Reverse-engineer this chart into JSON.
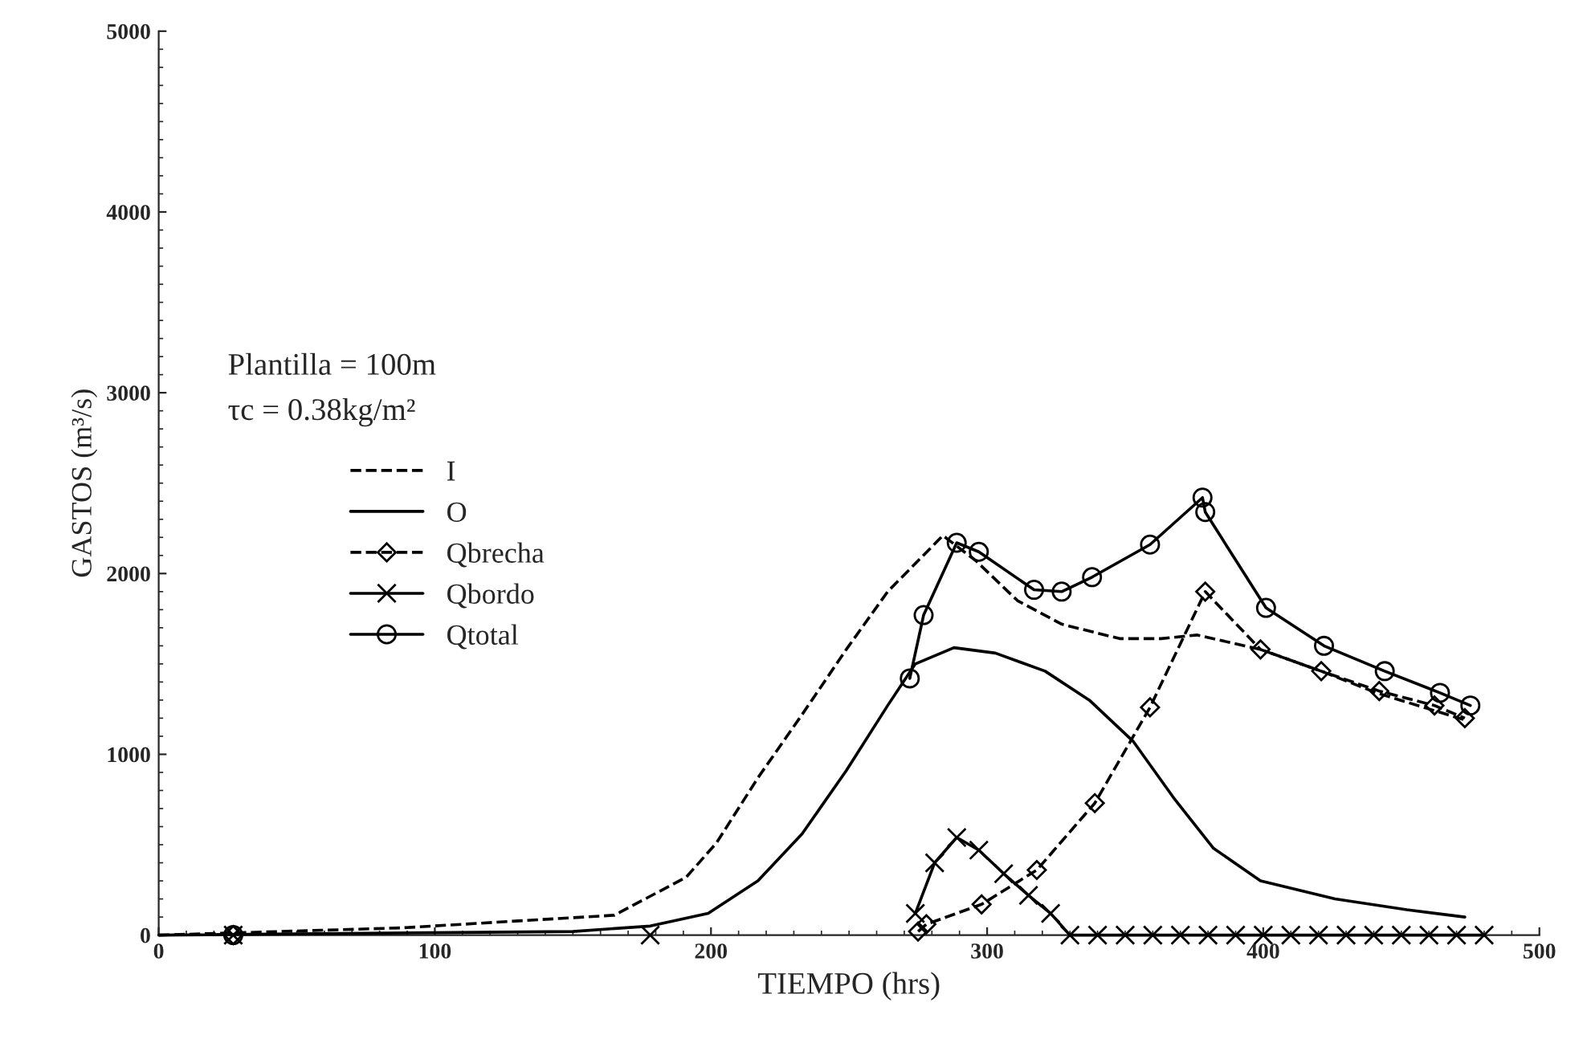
{
  "chart_data": {
    "type": "line",
    "xlabel": "TIEMPO (hrs)",
    "ylabel": "GASTOS (m³/s)",
    "annotations": [
      "Plantilla = 100m",
      "τc = 0.38kg/m²"
    ],
    "xlim": [
      0,
      500
    ],
    "ylim": [
      0,
      5000
    ],
    "xticks": [
      0,
      100,
      200,
      300,
      400,
      500
    ],
    "yticks": [
      0,
      1000,
      2000,
      3000,
      4000,
      5000
    ],
    "grid": false,
    "legend": "left",
    "series": [
      {
        "name": "I",
        "color": "#000000",
        "line_style": "dashed",
        "marker": "none",
        "x": [
          0,
          88,
          165,
          191,
          202,
          217,
          233,
          249,
          264,
          284,
          296,
          311,
          327,
          348,
          363,
          376,
          399,
          421,
          441,
          473
        ],
        "values": [
          0,
          40,
          110,
          320,
          510,
          870,
          1220,
          1580,
          1900,
          2210,
          2070,
          1850,
          1720,
          1640,
          1640,
          1660,
          1580,
          1460,
          1340,
          1190
        ]
      },
      {
        "name": "O",
        "color": "#000000",
        "line_style": "solid",
        "marker": "none",
        "x": [
          0,
          150,
          178,
          199,
          217,
          233,
          249,
          264,
          274,
          288,
          303,
          321,
          337,
          353,
          368,
          382,
          399,
          426,
          452,
          473
        ],
        "values": [
          0,
          20,
          50,
          120,
          300,
          560,
          910,
          1270,
          1500,
          1590,
          1560,
          1460,
          1300,
          1070,
          750,
          480,
          300,
          200,
          140,
          100
        ]
      },
      {
        "name": "Qbrecha",
        "color": "#000000",
        "line_style": "dashed",
        "marker": "diamond",
        "x": [
          27,
          150,
          275,
          278,
          298,
          318,
          339,
          359,
          379,
          399,
          421,
          442,
          462,
          473
        ],
        "values": [
          0,
          null,
          20,
          60,
          170,
          360,
          730,
          1260,
          1900,
          1580,
          1460,
          1350,
          1270,
          1200
        ]
      },
      {
        "name": "Qbordo",
        "color": "#000000",
        "line_style": "solid",
        "marker": "cross",
        "x": [
          27,
          100,
          178,
          200,
          274,
          281,
          289,
          297,
          306,
          315,
          323,
          330,
          340,
          350,
          360,
          370,
          380,
          390,
          400,
          410,
          420,
          430,
          440,
          450,
          460,
          470,
          480
        ],
        "values": [
          0,
          null,
          0,
          null,
          120,
          400,
          540,
          470,
          340,
          220,
          120,
          0,
          0,
          0,
          0,
          0,
          0,
          0,
          0,
          0,
          0,
          0,
          0,
          0,
          0,
          0,
          0
        ]
      },
      {
        "name": "Qtotal",
        "color": "#000000",
        "line_style": "solid",
        "marker": "circle",
        "x": [
          27,
          150,
          272,
          277,
          289,
          297,
          317,
          327,
          338,
          359,
          378,
          379,
          401,
          422,
          444,
          464,
          475
        ],
        "values": [
          0,
          null,
          1420,
          1770,
          2170,
          2120,
          1910,
          1900,
          1980,
          2160,
          2420,
          2340,
          1810,
          1600,
          1460,
          1340,
          1270
        ]
      }
    ]
  }
}
